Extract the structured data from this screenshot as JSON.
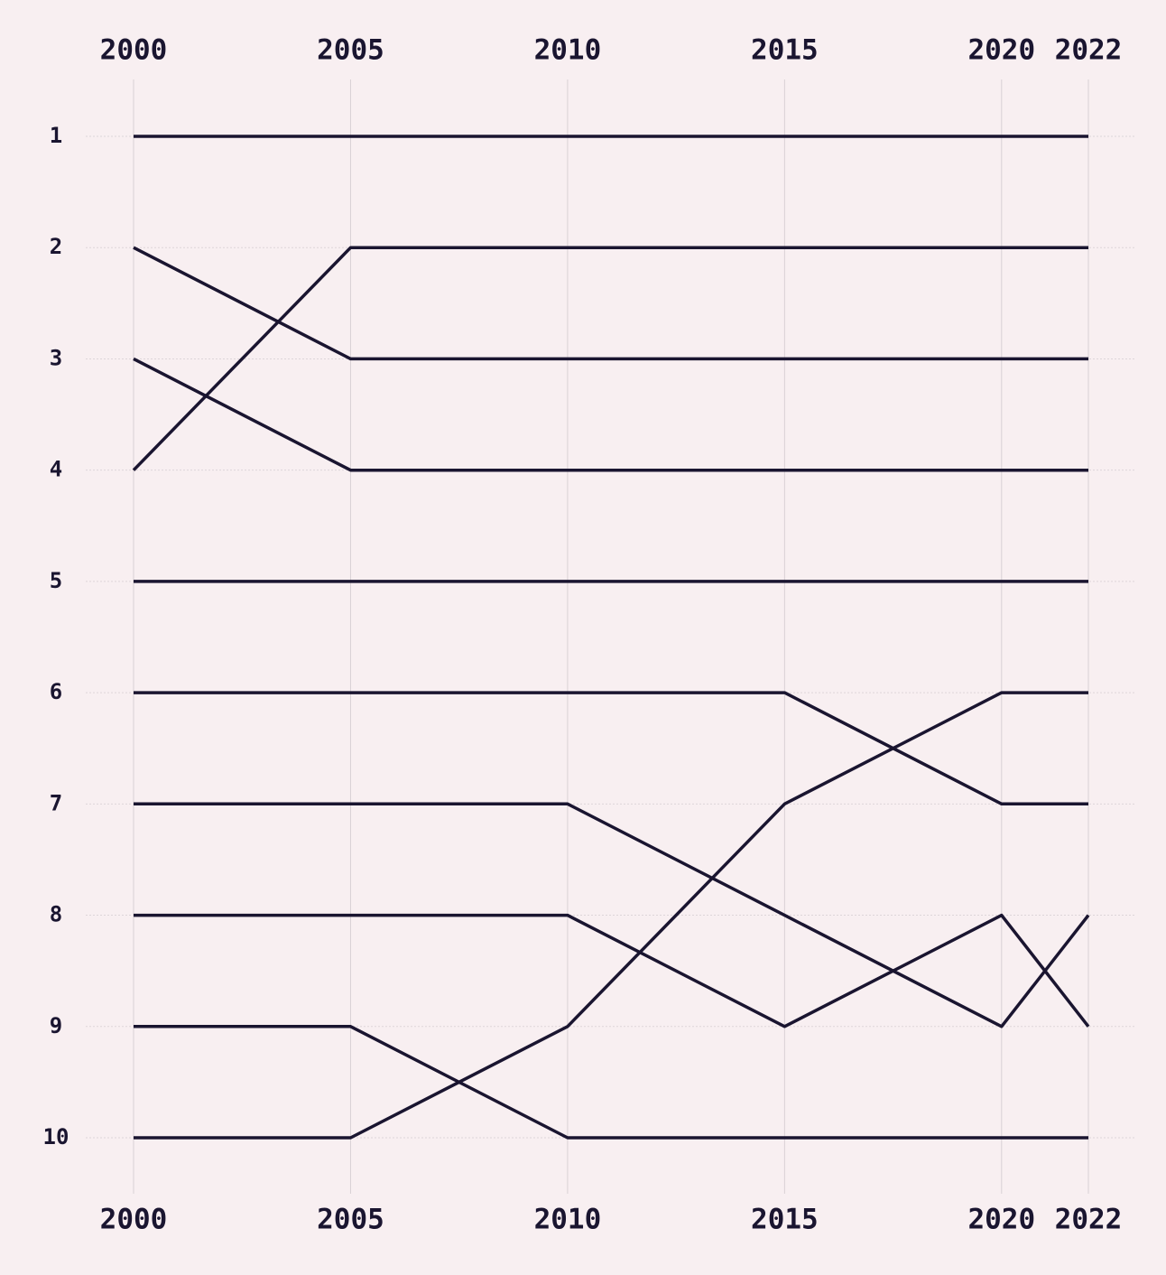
{
  "chart_data": {
    "type": "line",
    "subtype": "bump",
    "x": [
      "2000",
      "2005",
      "2010",
      "2015",
      "2020",
      "2022"
    ],
    "y_axis": {
      "ticks": [
        "1",
        "2",
        "3",
        "4",
        "5",
        "6",
        "7",
        "8",
        "9",
        "10"
      ],
      "inverted": true,
      "ylim": [
        1,
        10
      ]
    },
    "x_axis_positions": [
      "top",
      "bottom"
    ],
    "grid": true,
    "line_color": "#1a1530",
    "background": "#f8eff1",
    "series": [
      {
        "values": [
          1,
          1,
          1,
          1,
          1,
          1
        ]
      },
      {
        "values": [
          2,
          3,
          3,
          3,
          3,
          3
        ]
      },
      {
        "values": [
          3,
          4,
          4,
          4,
          4,
          4
        ]
      },
      {
        "values": [
          4,
          2,
          2,
          2,
          2,
          2
        ]
      },
      {
        "values": [
          5,
          5,
          5,
          5,
          5,
          5
        ]
      },
      {
        "values": [
          6,
          6,
          6,
          6,
          7,
          7
        ]
      },
      {
        "values": [
          7,
          7,
          7,
          8,
          9,
          8
        ]
      },
      {
        "values": [
          8,
          8,
          8,
          9,
          8,
          9
        ]
      },
      {
        "values": [
          9,
          9,
          10,
          10,
          10,
          10
        ]
      },
      {
        "values": [
          10,
          10,
          9,
          7,
          6,
          6
        ]
      }
    ]
  }
}
